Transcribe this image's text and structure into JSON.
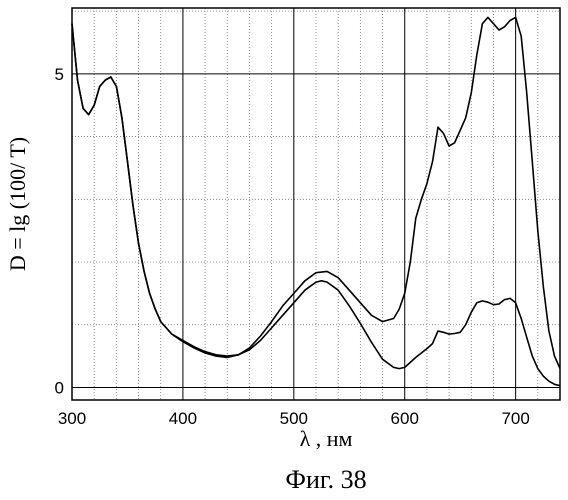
{
  "chart_data": {
    "type": "line",
    "title": "",
    "xlabel": "λ , нм",
    "ylabel": "D = lg (100/ T)",
    "caption": "Фиг. 38",
    "xlim": [
      300,
      740
    ],
    "ylim": [
      -0.2,
      6.05
    ],
    "x_ticks": [
      300,
      400,
      500,
      600,
      700
    ],
    "y_ticks": [
      0,
      5
    ],
    "grid": true,
    "legend": "none",
    "line_color": "#000000",
    "series": [
      {
        "x": [
          300,
          305,
          310,
          315,
          320,
          325,
          330,
          335,
          340,
          345,
          350,
          355,
          360,
          365,
          370,
          375,
          380,
          390,
          400,
          410,
          420,
          430,
          440,
          450,
          460,
          470,
          480,
          490,
          500,
          510,
          520,
          525,
          530,
          540,
          550,
          560,
          570,
          580,
          590,
          595,
          600,
          605,
          610,
          615,
          620,
          625,
          630,
          635,
          640,
          645,
          650,
          655,
          660,
          665,
          670,
          675,
          680,
          685,
          690,
          695,
          700,
          705,
          710,
          715,
          720,
          725,
          730,
          735,
          740
        ],
        "y": [
          5.8,
          4.9,
          4.45,
          4.35,
          4.5,
          4.8,
          4.9,
          4.95,
          4.8,
          4.3,
          3.6,
          2.9,
          2.3,
          1.85,
          1.5,
          1.25,
          1.05,
          0.85,
          0.75,
          0.65,
          0.57,
          0.52,
          0.5,
          0.52,
          0.6,
          0.75,
          0.95,
          1.15,
          1.35,
          1.55,
          1.68,
          1.7,
          1.68,
          1.55,
          1.3,
          1.02,
          0.72,
          0.45,
          0.32,
          0.3,
          0.32,
          0.4,
          0.48,
          0.55,
          0.62,
          0.7,
          0.9,
          0.88,
          0.85,
          0.86,
          0.88,
          1.0,
          1.2,
          1.35,
          1.38,
          1.36,
          1.32,
          1.33,
          1.4,
          1.42,
          1.35,
          1.1,
          0.8,
          0.5,
          0.3,
          0.18,
          0.1,
          0.05,
          0.03
        ]
      },
      {
        "x": [
          300,
          305,
          310,
          315,
          320,
          325,
          330,
          335,
          340,
          345,
          350,
          355,
          360,
          365,
          370,
          375,
          380,
          390,
          400,
          410,
          420,
          430,
          440,
          450,
          460,
          470,
          480,
          490,
          500,
          510,
          520,
          530,
          540,
          550,
          560,
          570,
          580,
          590,
          595,
          600,
          605,
          610,
          615,
          620,
          625,
          630,
          635,
          640,
          645,
          650,
          655,
          660,
          665,
          670,
          675,
          680,
          685,
          690,
          695,
          700,
          705,
          710,
          715,
          720,
          725,
          730,
          735,
          740
        ],
        "y": [
          5.8,
          4.9,
          4.45,
          4.35,
          4.5,
          4.8,
          4.9,
          4.95,
          4.8,
          4.3,
          3.6,
          2.9,
          2.3,
          1.85,
          1.5,
          1.25,
          1.05,
          0.85,
          0.73,
          0.63,
          0.55,
          0.5,
          0.48,
          0.52,
          0.63,
          0.82,
          1.05,
          1.3,
          1.5,
          1.7,
          1.83,
          1.85,
          1.75,
          1.55,
          1.35,
          1.15,
          1.05,
          1.1,
          1.25,
          1.5,
          2.0,
          2.7,
          3.0,
          3.25,
          3.6,
          4.15,
          4.05,
          3.85,
          3.9,
          4.1,
          4.3,
          4.7,
          5.3,
          5.8,
          5.9,
          5.8,
          5.7,
          5.75,
          5.85,
          5.9,
          5.6,
          4.7,
          3.6,
          2.5,
          1.6,
          0.9,
          0.5,
          0.3
        ]
      }
    ]
  }
}
